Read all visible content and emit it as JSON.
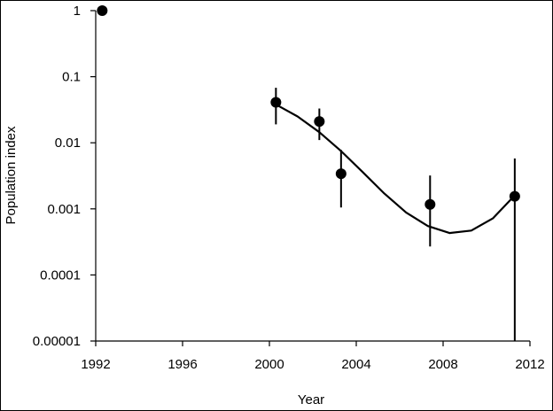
{
  "chart_data": {
    "type": "scatter",
    "xlabel": "Year",
    "ylabel": "Population index",
    "xlim": [
      1992,
      2012
    ],
    "ylim": [
      1e-05,
      1
    ],
    "y_scale": "log",
    "grid": false,
    "legend": "none",
    "x_ticks": [
      {
        "value": 1992,
        "label": "1992"
      },
      {
        "value": 1996,
        "label": "1996"
      },
      {
        "value": 2000,
        "label": "2000"
      },
      {
        "value": 2004,
        "label": "2004"
      },
      {
        "value": 2008,
        "label": "2008"
      },
      {
        "value": 2012,
        "label": "2012"
      }
    ],
    "y_ticks": [
      {
        "value": 1,
        "label": "1"
      },
      {
        "value": 0.1,
        "label": "0.1"
      },
      {
        "value": 0.01,
        "label": "0.01"
      },
      {
        "value": 0.001,
        "label": "0.001"
      },
      {
        "value": 0.0001,
        "label": "0.0001"
      },
      {
        "value": 1e-05,
        "label": "0.00001"
      }
    ],
    "points": [
      {
        "x": 1992.3,
        "y": 1,
        "lower": null,
        "upper": null
      },
      {
        "x": 2000.3,
        "y": 0.041,
        "lower": 0.019,
        "upper": 0.068
      },
      {
        "x": 2002.3,
        "y": 0.021,
        "lower": 0.011,
        "upper": 0.033
      },
      {
        "x": 2003.3,
        "y": 0.0034,
        "lower": 0.00105,
        "upper": 0.0078
      },
      {
        "x": 2007.4,
        "y": 0.00117,
        "lower": 0.00027,
        "upper": 0.0032
      },
      {
        "x": 2011.3,
        "y": 0.00155,
        "lower": 7e-06,
        "upper": 0.0058
      }
    ],
    "fit_line": {
      "x": [
        2000.3,
        2001.3,
        2002.3,
        2003.3,
        2004.3,
        2005.3,
        2006.3,
        2007.3,
        2008.3,
        2009.3,
        2010.3,
        2011.3
      ],
      "y": [
        0.038,
        0.025,
        0.0145,
        0.0075,
        0.0036,
        0.0017,
        0.00088,
        0.00055,
        0.00043,
        0.00047,
        0.00072,
        0.0016
      ]
    },
    "colors": {
      "marker": "#000000",
      "line": "#000000",
      "axis": "#000000"
    }
  }
}
